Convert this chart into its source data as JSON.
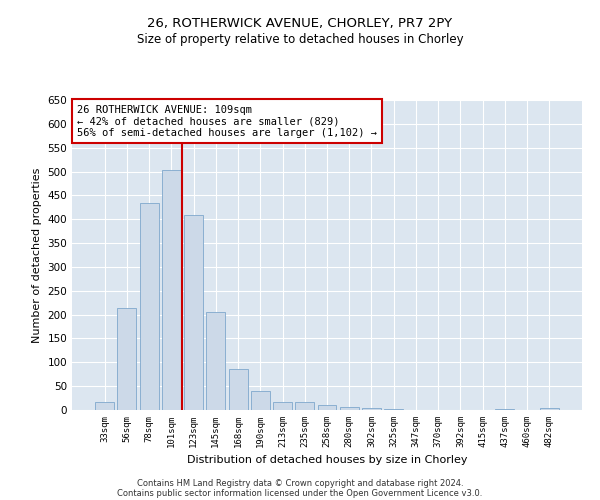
{
  "title_line1": "26, ROTHERWICK AVENUE, CHORLEY, PR7 2PY",
  "title_line2": "Size of property relative to detached houses in Chorley",
  "xlabel": "Distribution of detached houses by size in Chorley",
  "ylabel": "Number of detached properties",
  "categories": [
    "33sqm",
    "56sqm",
    "78sqm",
    "101sqm",
    "123sqm",
    "145sqm",
    "168sqm",
    "190sqm",
    "213sqm",
    "235sqm",
    "258sqm",
    "280sqm",
    "302sqm",
    "325sqm",
    "347sqm",
    "370sqm",
    "392sqm",
    "415sqm",
    "437sqm",
    "460sqm",
    "482sqm"
  ],
  "values": [
    17,
    213,
    435,
    503,
    408,
    206,
    87,
    40,
    17,
    16,
    11,
    7,
    5,
    2,
    1,
    1,
    0,
    0,
    2,
    0,
    5
  ],
  "bar_color": "#ccd9e8",
  "bar_edge_color": "#7fa8cc",
  "vline_x": 3.5,
  "vline_color": "#cc0000",
  "annotation_text": "26 ROTHERWICK AVENUE: 109sqm\n← 42% of detached houses are smaller (829)\n56% of semi-detached houses are larger (1,102) →",
  "annotation_box_color": "#cc0000",
  "ylim": [
    0,
    650
  ],
  "yticks": [
    0,
    50,
    100,
    150,
    200,
    250,
    300,
    350,
    400,
    450,
    500,
    550,
    600,
    650
  ],
  "background_color": "#dce6f0",
  "footer_line1": "Contains HM Land Registry data © Crown copyright and database right 2024.",
  "footer_line2": "Contains public sector information licensed under the Open Government Licence v3.0."
}
